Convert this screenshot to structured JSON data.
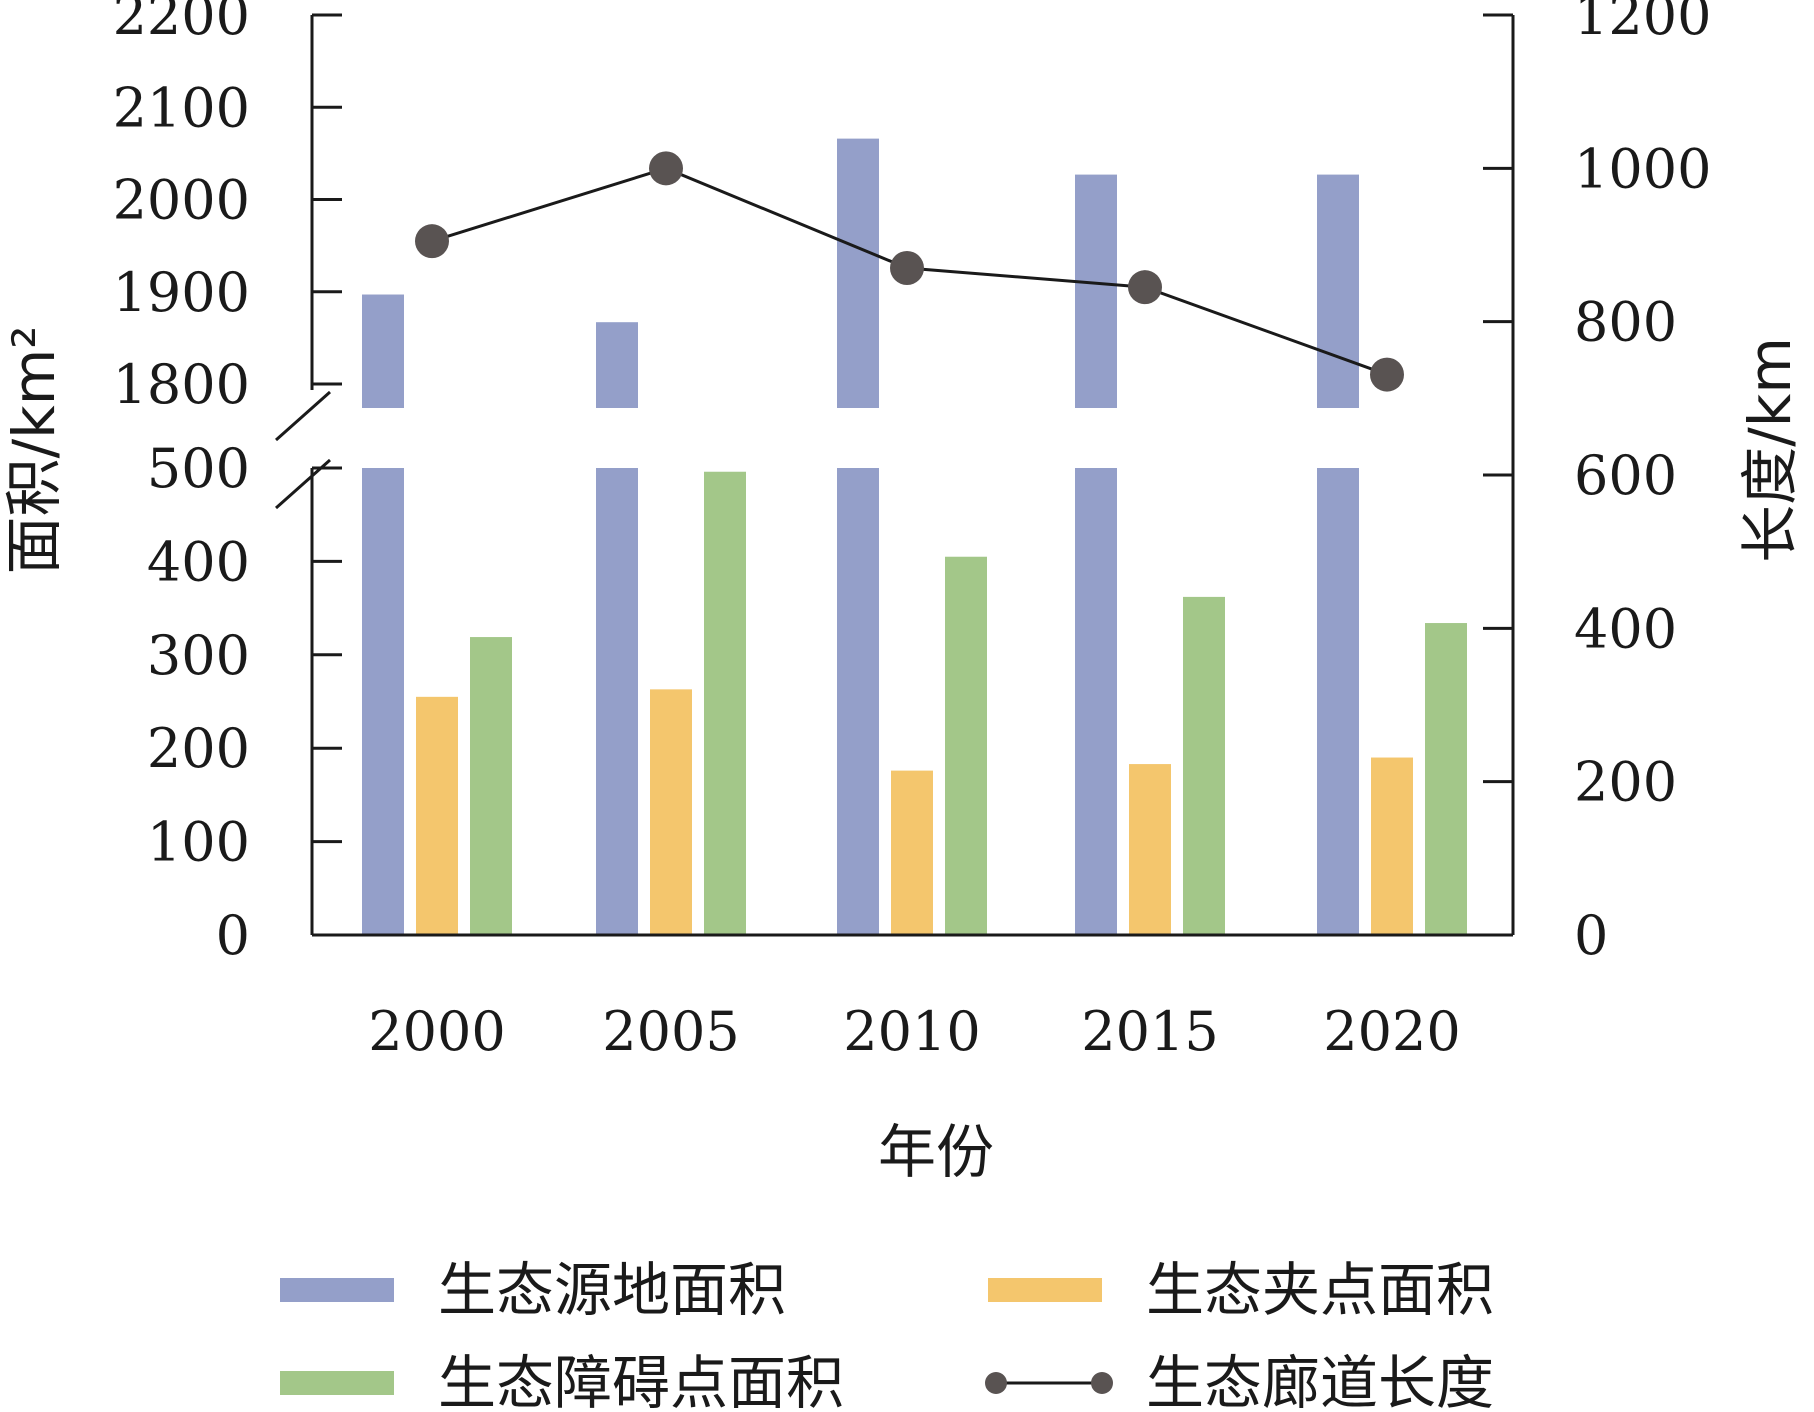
{
  "chart_data": {
    "type": "bar",
    "categories": [
      "2000",
      "2005",
      "2010",
      "2015",
      "2020"
    ],
    "xlabel": "年份",
    "ylabel_left": "面积/km²",
    "ylabel_right": "长度/km",
    "left_axis": {
      "broken": true,
      "lower_range": [
        0,
        500
      ],
      "lower_ticks": [
        "0",
        "100",
        "200",
        "300",
        "400",
        "500"
      ],
      "upper_range": [
        1800,
        2200
      ],
      "upper_ticks": [
        "1800",
        "1900",
        "2000",
        "2100",
        "2200"
      ]
    },
    "right_axis": {
      "range": [
        0,
        1200
      ],
      "ticks": [
        "0",
        "200",
        "400",
        "600",
        "800",
        "1000",
        "1200"
      ]
    },
    "series": [
      {
        "name": "生态源地面积",
        "type": "bar",
        "axis": "left",
        "color": "#949fc9",
        "values": [
          1897,
          1867,
          2066,
          2027,
          2027
        ]
      },
      {
        "name": "生态夹点面积",
        "type": "bar",
        "axis": "left",
        "color": "#f4c66d",
        "values": [
          255,
          263,
          176,
          183,
          190
        ]
      },
      {
        "name": "生态障碍点面积",
        "type": "bar",
        "axis": "left",
        "color": "#a3c789",
        "values": [
          319,
          496,
          405,
          362,
          334
        ]
      },
      {
        "name": "生态廊道长度",
        "type": "line",
        "axis": "right",
        "color": "#595352",
        "values": [
          905,
          1000,
          870,
          845,
          731
        ]
      }
    ],
    "legend_position": "bottom",
    "grid": false
  }
}
